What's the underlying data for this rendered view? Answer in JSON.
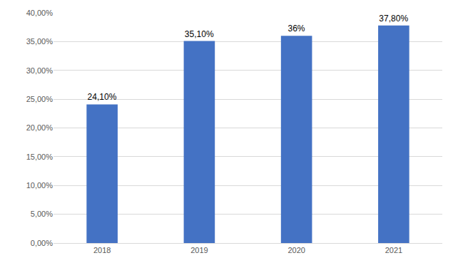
{
  "chart_data": {
    "type": "bar",
    "categories": [
      "2018",
      "2019",
      "2020",
      "2021"
    ],
    "values": [
      24.1,
      35.1,
      36,
      37.8
    ],
    "value_labels": [
      "24,10%",
      "35,10%",
      "36%",
      "37,80%"
    ],
    "data_labels": true,
    "color": "#4472c4",
    "ylim": [
      0,
      40
    ],
    "yticks": [
      {
        "value": 0,
        "label": "0,00%"
      },
      {
        "value": 5,
        "label": "5,00%"
      },
      {
        "value": 10,
        "label": "10,00%"
      },
      {
        "value": 15,
        "label": "15,00%"
      },
      {
        "value": 20,
        "label": "20,00%"
      },
      {
        "value": 25,
        "label": "25,00%"
      },
      {
        "value": 30,
        "label": "30,00%"
      },
      {
        "value": 35,
        "label": "35,00%"
      },
      {
        "value": 40,
        "label": "40,00%"
      }
    ],
    "grid": true
  }
}
